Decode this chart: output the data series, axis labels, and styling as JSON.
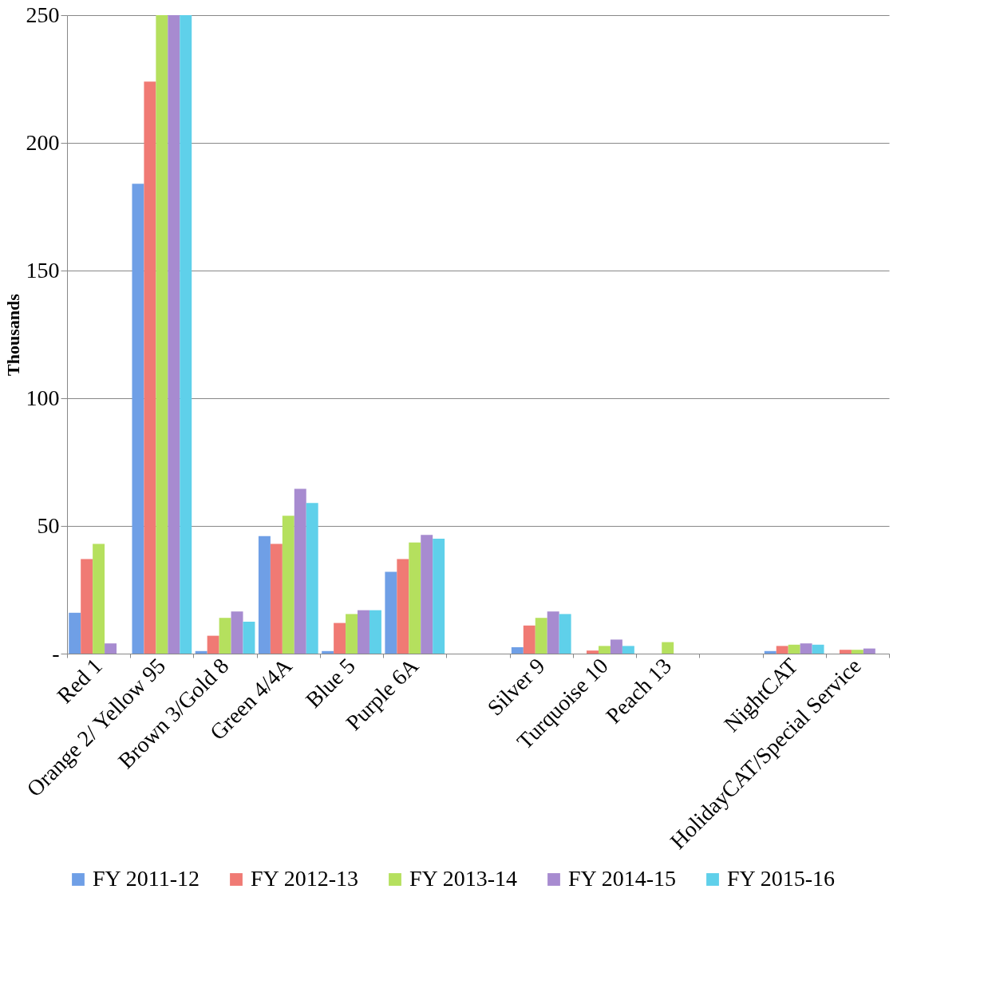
{
  "chart_data": {
    "type": "bar",
    "ylabel": "Thousands",
    "categories": [
      "Red 1",
      "Orange 2/ Yellow 95",
      "Brown 3/Gold 8",
      "Green 4/4A",
      "Blue 5",
      "Purple 6A",
      null,
      "Silver 9",
      "Turquoise 10",
      "Peach 13",
      null,
      "NightCAT",
      "HolidayCAT/Special Service"
    ],
    "series": [
      {
        "name": "FY 2011-12",
        "color": "#6f9fe6",
        "values": [
          16,
          184,
          1,
          46,
          1,
          32,
          null,
          2.5,
          null,
          null,
          null,
          1,
          null
        ]
      },
      {
        "name": "FY 2012-13",
        "color": "#f07a74",
        "values": [
          37,
          224,
          7,
          43,
          12,
          37,
          null,
          11,
          1.2,
          null,
          null,
          3,
          1.5
        ]
      },
      {
        "name": "FY 2013-14",
        "color": "#b5e05e",
        "values": [
          43,
          250,
          14,
          54,
          15.5,
          43.5,
          null,
          14,
          3,
          4.5,
          null,
          3.5,
          1.5
        ]
      },
      {
        "name": "FY 2014-15",
        "color": "#a78bd0",
        "values": [
          4,
          250,
          16.5,
          64.5,
          17,
          46.5,
          null,
          16.5,
          5.5,
          null,
          null,
          4,
          2
        ]
      },
      {
        "name": "FY 2015-16",
        "color": "#5fd0ea",
        "values": [
          null,
          250,
          12.5,
          59,
          17,
          45,
          null,
          15.5,
          3,
          null,
          null,
          3.5,
          null
        ]
      }
    ],
    "ylim": [
      0,
      250
    ],
    "yticks": [
      {
        "value": 0,
        "label": "-"
      },
      50,
      100,
      150,
      200,
      250
    ],
    "grid": "y",
    "legend": "bottom"
  }
}
